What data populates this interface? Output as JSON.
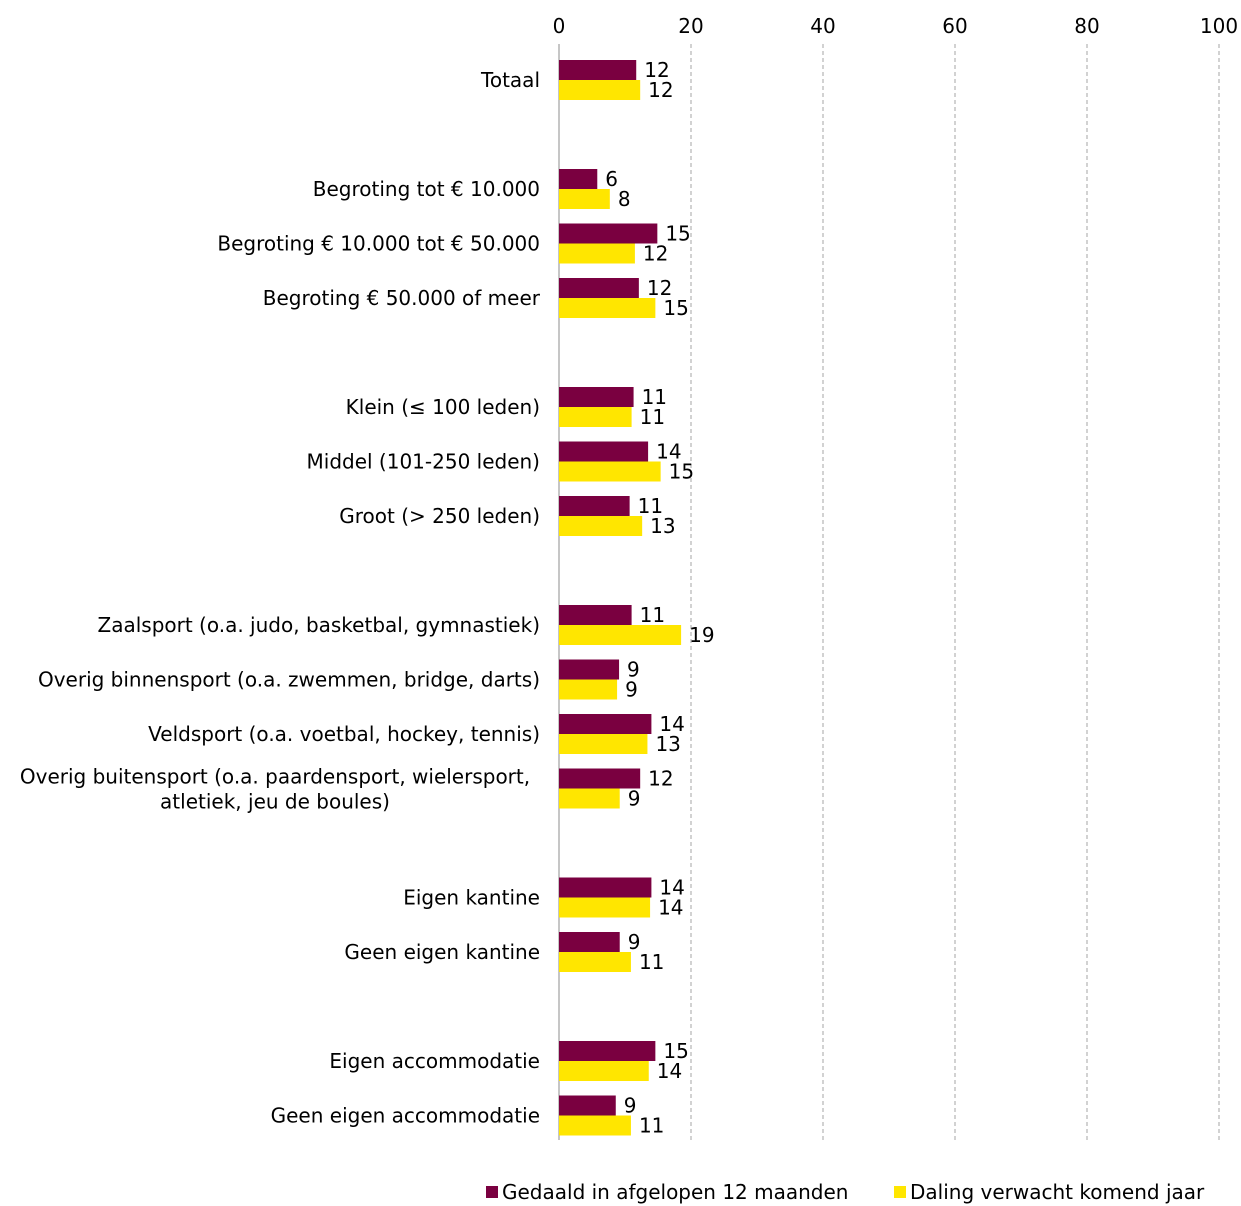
{
  "chart_data": {
    "type": "bar",
    "orientation": "horizontal",
    "xlim": [
      0,
      100
    ],
    "x_ticks": [
      "0",
      "20",
      "40",
      "60",
      "80",
      "100"
    ],
    "x_tick_values": [
      0,
      20,
      40,
      60,
      80,
      100
    ],
    "grid": "vertical dashed",
    "legend_placement": "bottom",
    "categories": [
      {
        "label": "Totaal",
        "group": 0
      },
      {
        "label": "Begroting tot € 10.000",
        "group": 1
      },
      {
        "label": "Begroting € 10.000 tot € 50.000",
        "group": 1
      },
      {
        "label": "Begroting € 50.000 of meer",
        "group": 1
      },
      {
        "label": "Klein (≤ 100 leden)",
        "group": 2
      },
      {
        "label": "Middel (101-250 leden)",
        "group": 2
      },
      {
        "label": "Groot (> 250 leden)",
        "group": 2
      },
      {
        "label": "Zaalsport (o.a. judo, basketbal, gymnastiek)",
        "group": 3
      },
      {
        "label": "Overig binnensport (o.a. zwemmen, bridge, darts)",
        "group": 3
      },
      {
        "label": "Veldsport (o.a. voetbal, hockey, tennis)",
        "group": 3
      },
      {
        "label": [
          "Overig buitensport (o.a. paardensport, wielersport,",
          "atletiek, jeu de boules)"
        ],
        "group": 3
      },
      {
        "label": "Eigen kantine",
        "group": 4
      },
      {
        "label": "Geen eigen kantine",
        "group": 4
      },
      {
        "label": "Eigen accommodatie",
        "group": 5
      },
      {
        "label": "Geen eigen accommodatie",
        "group": 5
      }
    ],
    "series": [
      {
        "name": "Gedaald in afgelopen 12 maanden",
        "color": "#7a0040",
        "values": [
          11.7,
          5.8,
          14.9,
          12.1,
          11.3,
          13.5,
          10.7,
          11.0,
          9.1,
          14.0,
          12.3,
          14.0,
          9.2,
          14.6,
          8.6
        ],
        "labels": [
          "12",
          "6",
          "15",
          "12",
          "11",
          "14",
          "11",
          "11",
          "9",
          "14",
          "12",
          "14",
          "9",
          "15",
          "9"
        ]
      },
      {
        "name": "Daling verwacht komend jaar",
        "color": "#ffe600",
        "values": [
          12.3,
          7.7,
          11.5,
          14.6,
          11.0,
          15.4,
          12.6,
          18.5,
          8.8,
          13.4,
          9.2,
          13.8,
          10.9,
          13.6,
          10.9
        ],
        "labels": [
          "12",
          "8",
          "12",
          "15",
          "11",
          "15",
          "13",
          "19",
          "9",
          "13",
          "9",
          "14",
          "11",
          "14",
          "11"
        ]
      }
    ]
  }
}
